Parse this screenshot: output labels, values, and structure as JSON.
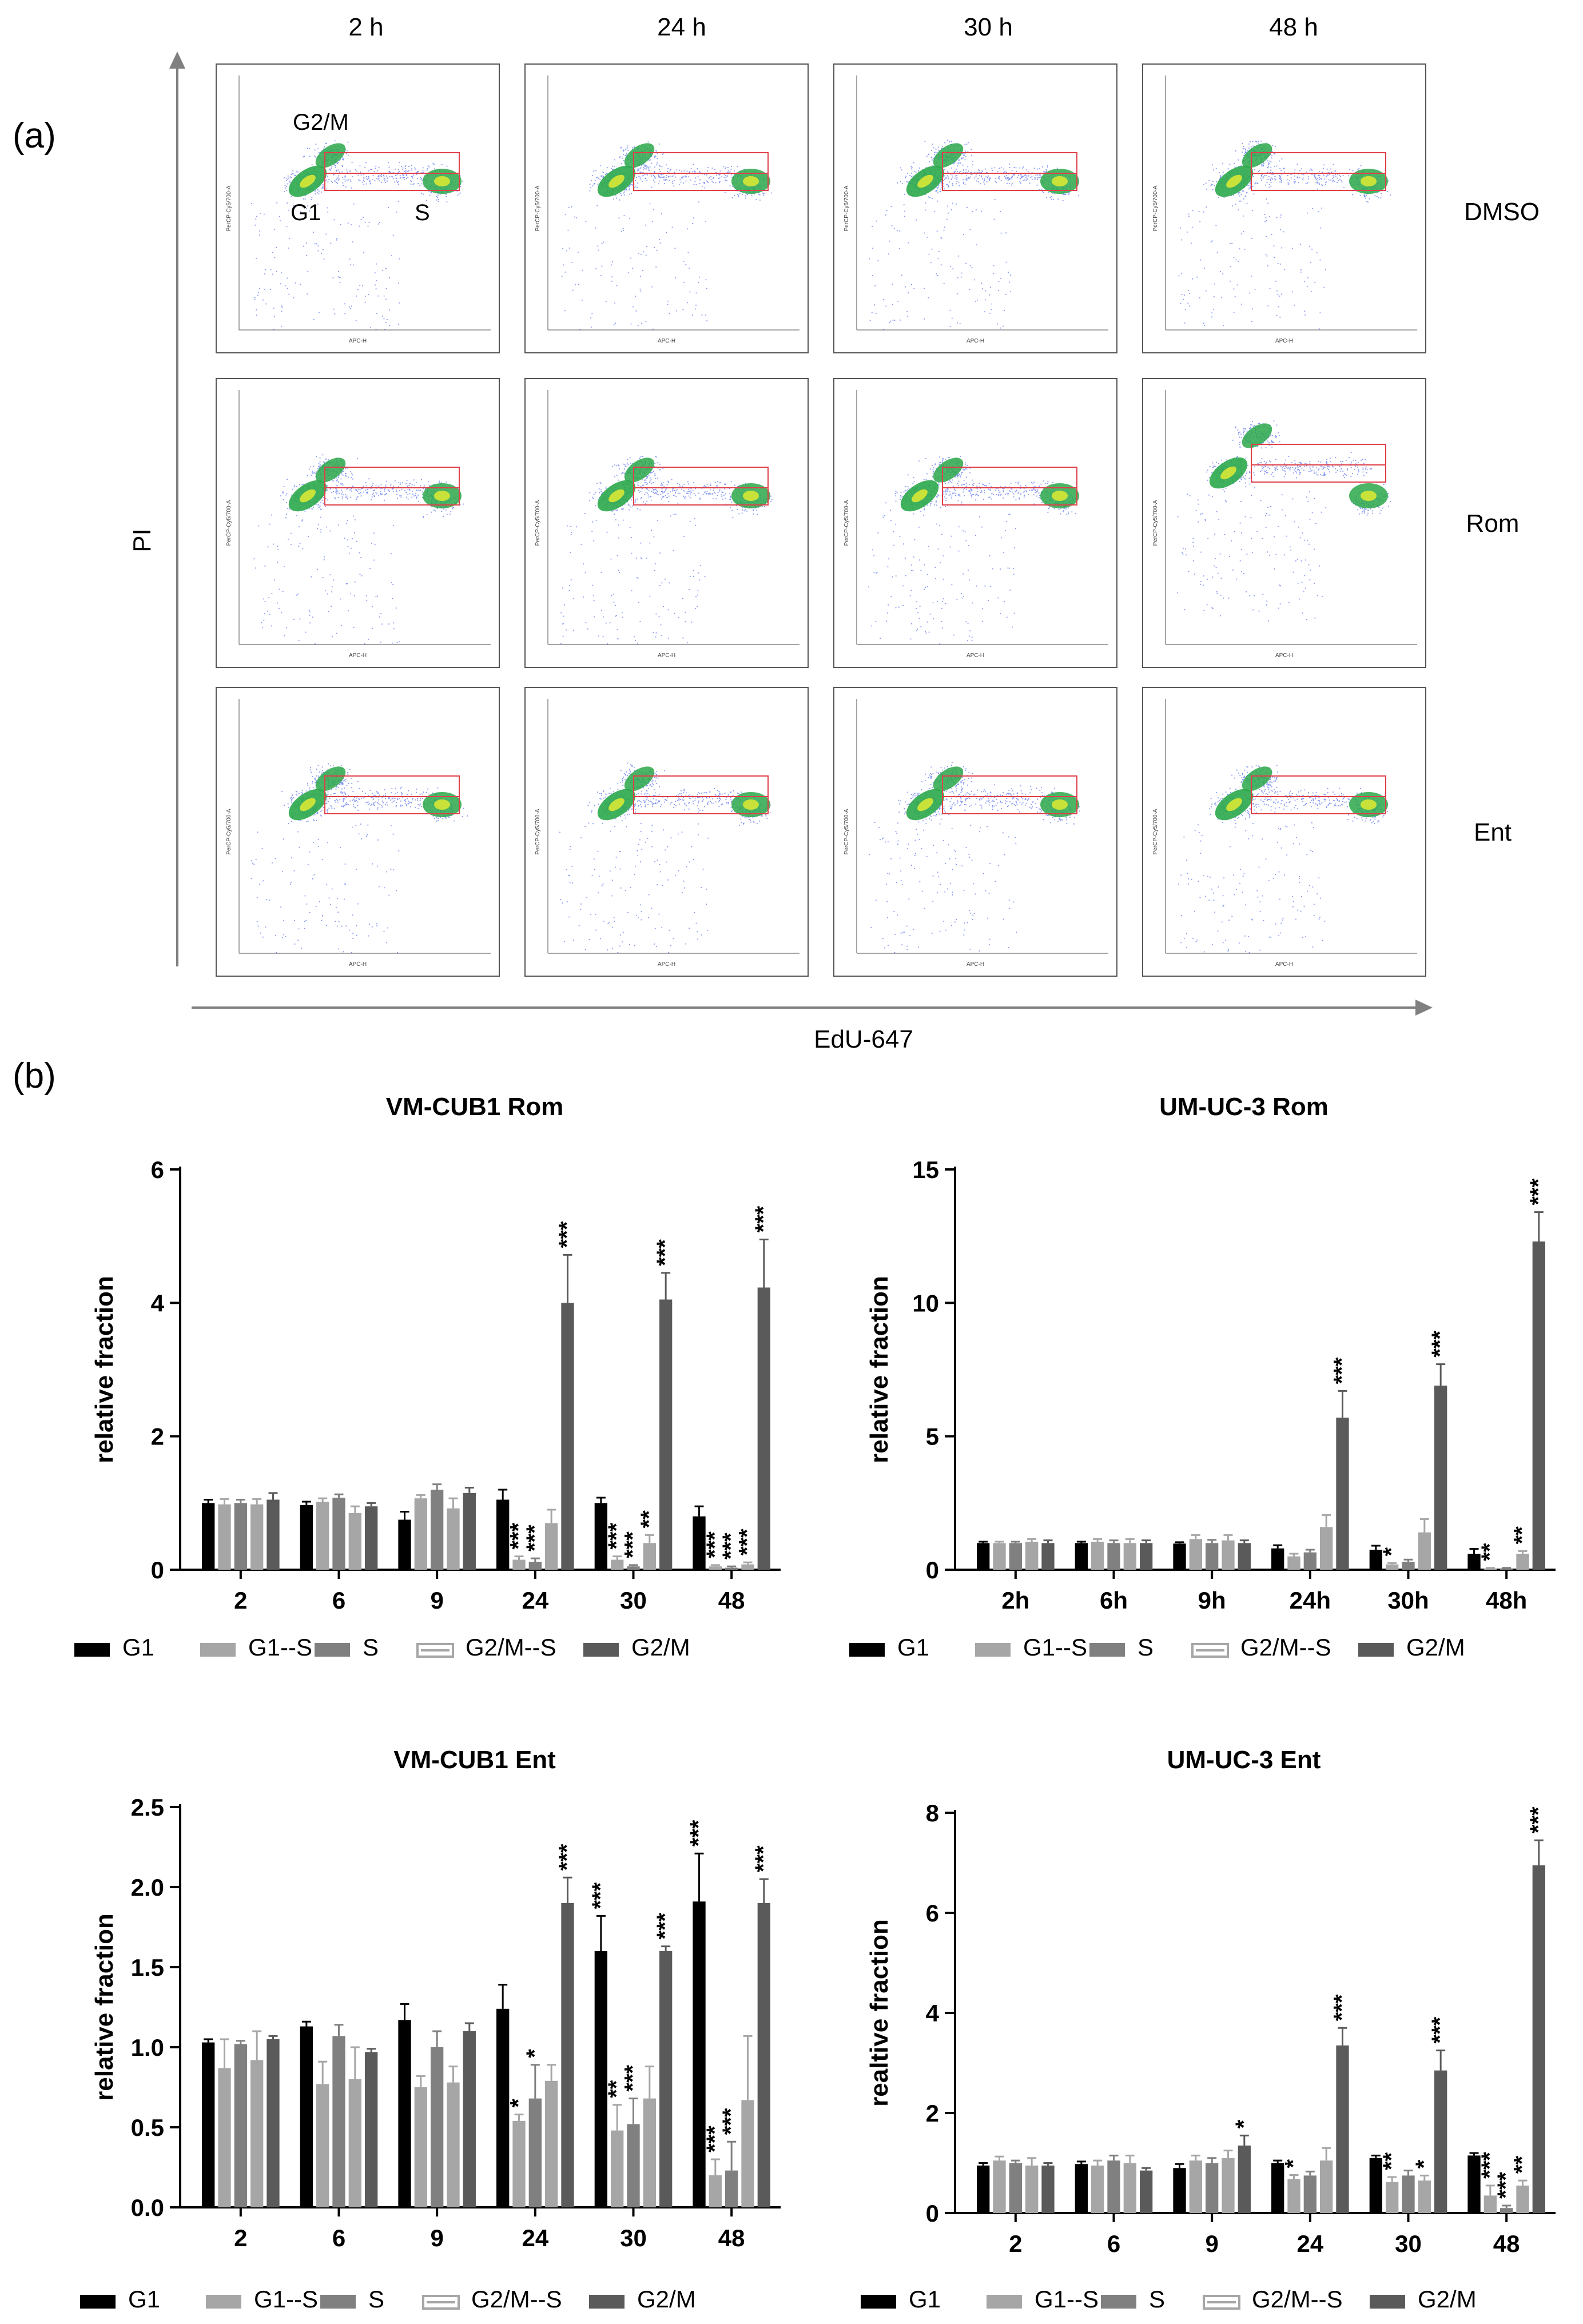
{
  "panel_a": {
    "label": "(a)",
    "time_labels": [
      "2 h",
      "24 h",
      "30 h",
      "48 h"
    ],
    "row_labels": [
      "DMSO",
      "Rom",
      "Ent"
    ],
    "y_axis": "PI",
    "x_axis": "EdU-647",
    "gate_labels": [
      "G2/M",
      "G1",
      "S"
    ],
    "plot_xlabel": "APC-H",
    "plot_ylabel": "PerCP-Cy5/700-A"
  },
  "panel_b": {
    "label": "(b)"
  },
  "legend_labels": [
    "G1",
    "G1--S",
    "S",
    "G2/M--S",
    "G2/M"
  ],
  "colors": {
    "G1": "#000000",
    "G1--S": "#a6a6a6",
    "S": "#808080",
    "G2/M--S": "#a6a6a6",
    "G2/M": "#5a5a5a",
    "scatter": "#1f3fe6",
    "gate": "#e0404a"
  },
  "chart_data": [
    {
      "type": "bar",
      "title": "VM-CUB1 Rom",
      "xlabel": "",
      "ylabel": "relative fraction",
      "ylim": [
        0,
        6
      ],
      "yticks": [
        "0",
        "2",
        "4",
        "6"
      ],
      "categories": [
        "2",
        "6",
        "9",
        "24",
        "30",
        "48"
      ],
      "series": [
        {
          "name": "G1",
          "values": [
            1.0,
            0.97,
            0.75,
            1.05,
            1.0,
            0.8
          ],
          "errors": [
            0.05,
            0.05,
            0.12,
            0.15,
            0.08,
            0.15
          ]
        },
        {
          "name": "G1--S",
          "values": [
            0.98,
            1.02,
            1.07,
            0.15,
            0.15,
            0.05
          ],
          "errors": [
            0.08,
            0.05,
            0.05,
            0.05,
            0.05,
            0.02
          ]
        },
        {
          "name": "S",
          "values": [
            1.0,
            1.08,
            1.2,
            0.12,
            0.05,
            0.03
          ],
          "errors": [
            0.05,
            0.05,
            0.08,
            0.05,
            0.02,
            0.02
          ]
        },
        {
          "name": "G2/M--S",
          "values": [
            0.98,
            0.85,
            0.92,
            0.7,
            0.4,
            0.08
          ],
          "errors": [
            0.08,
            0.1,
            0.15,
            0.2,
            0.12,
            0.03
          ]
        },
        {
          "name": "G2/M",
          "values": [
            1.05,
            0.95,
            1.15,
            4.0,
            4.05,
            4.23
          ],
          "errors": [
            0.1,
            0.05,
            0.08,
            0.72,
            0.4,
            0.72
          ]
        }
      ],
      "annotations": [
        {
          "category": "24",
          "series": "G1--S",
          "text": "***"
        },
        {
          "category": "24",
          "series": "S",
          "text": "***"
        },
        {
          "category": "24",
          "series": "G2/M",
          "text": "***"
        },
        {
          "category": "30",
          "series": "G1--S",
          "text": "***"
        },
        {
          "category": "30",
          "series": "S",
          "text": "***"
        },
        {
          "category": "30",
          "series": "G2/M--S",
          "text": "**"
        },
        {
          "category": "30",
          "series": "G2/M",
          "text": "***"
        },
        {
          "category": "48",
          "series": "G1--S",
          "text": "***"
        },
        {
          "category": "48",
          "series": "S",
          "text": "***"
        },
        {
          "category": "48",
          "series": "G2/M--S",
          "text": "***"
        },
        {
          "category": "48",
          "series": "G2/M",
          "text": "***"
        }
      ]
    },
    {
      "type": "bar",
      "title": "UM-UC-3 Rom",
      "xlabel": "",
      "ylabel": "relative fraction",
      "ylim": [
        0,
        15
      ],
      "yticks": [
        "0",
        "5",
        "10",
        "15"
      ],
      "categories": [
        "2h",
        "6h",
        "9h",
        "24h",
        "30h",
        "48h"
      ],
      "series": [
        {
          "name": "G1",
          "values": [
            1.0,
            1.0,
            0.98,
            0.8,
            0.75,
            0.6
          ],
          "errors": [
            0.05,
            0.05,
            0.05,
            0.12,
            0.15,
            0.18
          ]
        },
        {
          "name": "G1--S",
          "values": [
            1.0,
            1.05,
            1.15,
            0.5,
            0.2,
            0.05
          ],
          "errors": [
            0.05,
            0.1,
            0.15,
            0.1,
            0.05,
            0.02
          ]
        },
        {
          "name": "S",
          "values": [
            1.0,
            1.0,
            1.0,
            0.65,
            0.3,
            0.05
          ],
          "errors": [
            0.05,
            0.1,
            0.12,
            0.1,
            0.08,
            0.02
          ]
        },
        {
          "name": "G2/M--S",
          "values": [
            1.05,
            1.0,
            1.1,
            1.6,
            1.4,
            0.6
          ],
          "errors": [
            0.1,
            0.15,
            0.2,
            0.45,
            0.5,
            0.1
          ]
        },
        {
          "name": "G2/M",
          "values": [
            1.0,
            1.0,
            1.0,
            5.7,
            6.9,
            12.3
          ],
          "errors": [
            0.1,
            0.1,
            0.1,
            1.0,
            0.8,
            1.1
          ]
        }
      ],
      "annotations": [
        {
          "category": "24h",
          "series": "G2/M",
          "text": "***"
        },
        {
          "category": "30h",
          "series": "G1--S",
          "text": "*"
        },
        {
          "category": "30h",
          "series": "G2/M",
          "text": "***"
        },
        {
          "category": "48h",
          "series": "G1--S",
          "text": "**"
        },
        {
          "category": "48h",
          "series": "G2/M--S",
          "text": "**"
        },
        {
          "category": "48h",
          "series": "G2/M",
          "text": "***"
        }
      ]
    },
    {
      "type": "bar",
      "title": "VM-CUB1 Ent",
      "xlabel": "",
      "ylabel": "relative fraction",
      "ylim": [
        0,
        2.5
      ],
      "yticks": [
        "0.0",
        "0.5",
        "1.0",
        "1.5",
        "2.0",
        "2.5"
      ],
      "categories": [
        "2",
        "6",
        "9",
        "24",
        "30",
        "48"
      ],
      "series": [
        {
          "name": "G1",
          "values": [
            1.03,
            1.13,
            1.17,
            1.24,
            1.6,
            1.91
          ],
          "errors": [
            0.02,
            0.03,
            0.1,
            0.15,
            0.22,
            0.3
          ]
        },
        {
          "name": "G1--S",
          "values": [
            0.87,
            0.77,
            0.75,
            0.54,
            0.48,
            0.2
          ],
          "errors": [
            0.18,
            0.14,
            0.07,
            0.04,
            0.16,
            0.1
          ]
        },
        {
          "name": "S",
          "values": [
            1.02,
            1.07,
            1.0,
            0.68,
            0.52,
            0.23
          ],
          "errors": [
            0.02,
            0.07,
            0.1,
            0.21,
            0.16,
            0.18
          ]
        },
        {
          "name": "G2/M--S",
          "values": [
            0.92,
            0.8,
            0.78,
            0.79,
            0.68,
            0.67
          ],
          "errors": [
            0.18,
            0.2,
            0.1,
            0.1,
            0.2,
            0.4
          ]
        },
        {
          "name": "G2/M",
          "values": [
            1.05,
            0.97,
            1.1,
            1.9,
            1.6,
            1.9
          ],
          "errors": [
            0.02,
            0.02,
            0.05,
            0.16,
            0.03,
            0.15
          ]
        }
      ],
      "annotations": [
        {
          "category": "24",
          "series": "G1--S",
          "text": "*"
        },
        {
          "category": "24",
          "series": "S",
          "text": "*"
        },
        {
          "category": "24",
          "series": "G2/M",
          "text": "***"
        },
        {
          "category": "30",
          "series": "G1",
          "text": "***"
        },
        {
          "category": "30",
          "series": "G1--S",
          "text": "**"
        },
        {
          "category": "30",
          "series": "S",
          "text": "***"
        },
        {
          "category": "30",
          "series": "G2/M",
          "text": "***"
        },
        {
          "category": "48",
          "series": "G1",
          "text": "***"
        },
        {
          "category": "48",
          "series": "G1--S",
          "text": "***"
        },
        {
          "category": "48",
          "series": "S",
          "text": "***"
        },
        {
          "category": "48",
          "series": "G2/M",
          "text": "***"
        }
      ]
    },
    {
      "type": "bar",
      "title": "UM-UC-3 Ent",
      "xlabel": "",
      "ylabel": "realtive fraction",
      "ylim": [
        0,
        8
      ],
      "yticks": [
        "0",
        "2",
        "4",
        "6",
        "8"
      ],
      "categories": [
        "2",
        "6",
        "9",
        "24",
        "30",
        "48"
      ],
      "series": [
        {
          "name": "G1",
          "values": [
            0.95,
            0.98,
            0.9,
            1.0,
            1.1,
            1.15
          ],
          "errors": [
            0.05,
            0.05,
            0.08,
            0.05,
            0.05,
            0.05
          ]
        },
        {
          "name": "G1--S",
          "values": [
            1.05,
            0.95,
            1.05,
            0.68,
            0.62,
            0.35
          ],
          "errors": [
            0.08,
            0.1,
            0.1,
            0.08,
            0.1,
            0.2
          ]
        },
        {
          "name": "S",
          "values": [
            1.0,
            1.05,
            1.0,
            0.75,
            0.75,
            0.1
          ],
          "errors": [
            0.05,
            0.1,
            0.1,
            0.08,
            0.1,
            0.05
          ]
        },
        {
          "name": "G2/M--S",
          "values": [
            0.95,
            1.0,
            1.1,
            1.05,
            0.65,
            0.55
          ],
          "errors": [
            0.15,
            0.15,
            0.15,
            0.25,
            0.1,
            0.1
          ]
        },
        {
          "name": "G2/M",
          "values": [
            0.95,
            0.85,
            1.35,
            3.35,
            2.85,
            6.95
          ],
          "errors": [
            0.05,
            0.05,
            0.2,
            0.35,
            0.4,
            0.5
          ]
        }
      ],
      "annotations": [
        {
          "category": "9",
          "series": "G2/M",
          "text": "*"
        },
        {
          "category": "24",
          "series": "G1--S",
          "text": "*"
        },
        {
          "category": "24",
          "series": "G2/M",
          "text": "***"
        },
        {
          "category": "30",
          "series": "G1--S",
          "text": "**"
        },
        {
          "category": "30",
          "series": "G2/M--S",
          "text": "*"
        },
        {
          "category": "30",
          "series": "G2/M",
          "text": "***"
        },
        {
          "category": "48",
          "series": "G1--S",
          "text": "***"
        },
        {
          "category": "48",
          "series": "S",
          "text": "***"
        },
        {
          "category": "48",
          "series": "G2/M--S",
          "text": "**"
        },
        {
          "category": "48",
          "series": "G2/M",
          "text": "***"
        }
      ]
    }
  ]
}
